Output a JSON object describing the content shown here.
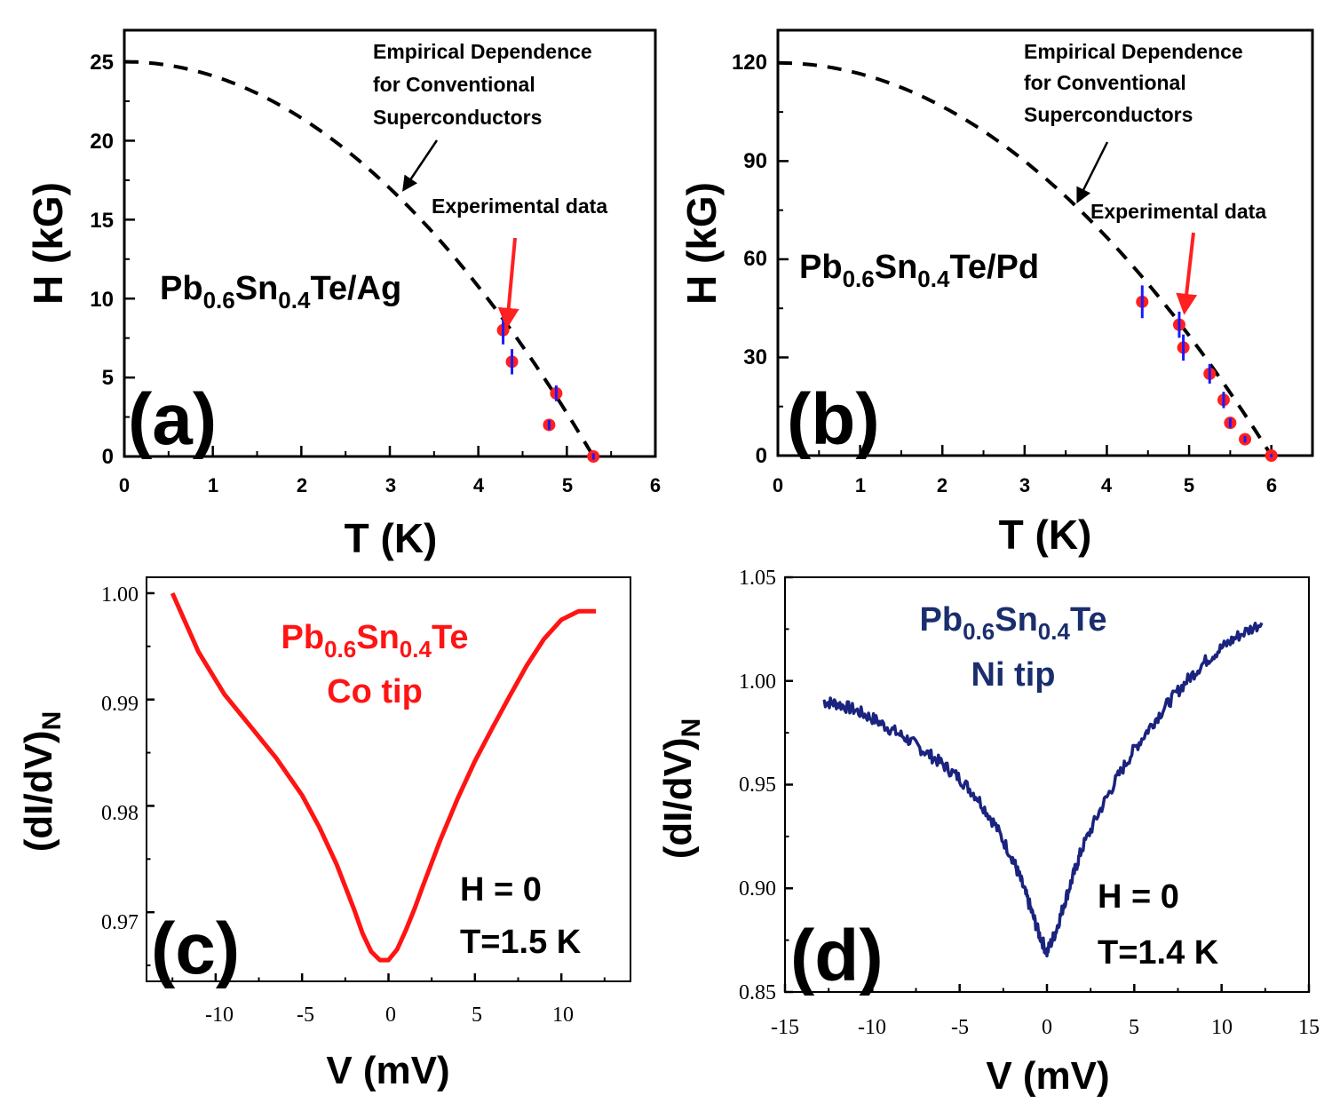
{
  "chart_data": [
    {
      "id": "a",
      "type": "scatter",
      "panel_label": "(a)",
      "xlabel": "T (K)",
      "ylabel": "H (kG)",
      "xlim": [
        0,
        6
      ],
      "ylim": [
        0,
        27
      ],
      "xticks": [
        "0",
        "1",
        "2",
        "3",
        "4",
        "5",
        "6"
      ],
      "yticks": [
        "0",
        "5",
        "10",
        "15",
        "20",
        "25"
      ],
      "sample": {
        "base": "Pb",
        "s1": "0.6",
        "mid": "Sn",
        "s2": "0.4",
        "tail": "Te/Ag"
      },
      "annotation_curve": [
        "Empirical Dependence",
        "for Conventional",
        "Superconductors"
      ],
      "annotation_data": "Experimental data",
      "empirical_curve": {
        "Hc0": 25,
        "Tc": 5.3
      },
      "points": [
        {
          "x": 4.28,
          "y": 8.0,
          "err": 0.9
        },
        {
          "x": 4.38,
          "y": 6.0,
          "err": 0.8
        },
        {
          "x": 4.8,
          "y": 2.0,
          "err": 0.3
        },
        {
          "x": 4.88,
          "y": 4.0,
          "err": 0.5
        },
        {
          "x": 5.3,
          "y": 0.0,
          "err": 0.2
        }
      ],
      "colors": {
        "marker": "#ff2020",
        "errorbar": "#1a1aff",
        "curve": "#000000",
        "arrow": "#ff2020"
      }
    },
    {
      "id": "b",
      "type": "scatter",
      "panel_label": "(b)",
      "xlabel": "T (K)",
      "ylabel": "H (kG)",
      "xlim": [
        0,
        6.5
      ],
      "ylim": [
        0,
        130
      ],
      "xticks": [
        "0",
        "1",
        "2",
        "3",
        "4",
        "5",
        "6"
      ],
      "yticks": [
        "0",
        "30",
        "60",
        "90",
        "120"
      ],
      "sample": {
        "base": "Pb",
        "s1": "0.6",
        "mid": "Sn",
        "s2": "0.4",
        "tail": "Te/Pd"
      },
      "annotation_curve": [
        "Empirical Dependence",
        "for Conventional",
        "Superconductors"
      ],
      "annotation_data": "Experimental data",
      "empirical_curve": {
        "Hc0": 120,
        "Tc": 6.0
      },
      "points": [
        {
          "x": 4.43,
          "y": 47,
          "err": 5
        },
        {
          "x": 4.88,
          "y": 40,
          "err": 4
        },
        {
          "x": 4.93,
          "y": 33,
          "err": 4
        },
        {
          "x": 5.25,
          "y": 25,
          "err": 3
        },
        {
          "x": 5.42,
          "y": 17,
          "err": 2.5
        },
        {
          "x": 5.5,
          "y": 10,
          "err": 1.5
        },
        {
          "x": 5.68,
          "y": 5,
          "err": 1
        },
        {
          "x": 6.0,
          "y": 0,
          "err": 0.5
        }
      ],
      "colors": {
        "marker": "#ff2020",
        "errorbar": "#1a1aff",
        "curve": "#000000",
        "arrow": "#ff2020"
      }
    },
    {
      "id": "c",
      "type": "line",
      "panel_label": "(c)",
      "xlabel": "V (mV)",
      "ylabel": "(dI/dV)",
      "ylabel_sub": "N",
      "xlim": [
        -14,
        14
      ],
      "ylim": [
        0.9635,
        1.0015
      ],
      "xticks": [
        "-10",
        "-5",
        "0",
        "5",
        "10"
      ],
      "yticks": [
        "0.97",
        "0.98",
        "0.99",
        "1.00"
      ],
      "sample": {
        "base": "Pb",
        "s1": "0.6",
        "mid": "Sn",
        "s2": "0.4",
        "tail": "Te"
      },
      "tip": "Co tip",
      "field": "H = 0",
      "temperature": "T=1.5 K",
      "series": [
        {
          "name": "Co tip",
          "x": [
            -12.5,
            -11,
            -9.5,
            -8,
            -6.5,
            -5,
            -4,
            -3,
            -2,
            -1.5,
            -1,
            -0.5,
            0,
            0.5,
            1,
            1.5,
            2,
            3,
            4,
            5,
            6,
            7,
            8,
            9,
            10,
            11,
            12
          ],
          "values": [
            1.0,
            0.9945,
            0.9905,
            0.9875,
            0.9845,
            0.981,
            0.978,
            0.9745,
            0.9703,
            0.968,
            0.9663,
            0.9655,
            0.9655,
            0.9665,
            0.9683,
            0.9703,
            0.9725,
            0.9768,
            0.9807,
            0.9842,
            0.9873,
            0.9903,
            0.9932,
            0.9957,
            0.9975,
            0.9983,
            0.9983
          ]
        }
      ],
      "colors": {
        "line": "#ff1414",
        "label": "#ff1414"
      }
    },
    {
      "id": "d",
      "type": "line",
      "panel_label": "(d)",
      "xlabel": "V (mV)",
      "ylabel": "(dI/dV)",
      "ylabel_sub": "N",
      "xlim": [
        -15,
        15
      ],
      "ylim": [
        0.85,
        1.05
      ],
      "xticks": [
        "-15",
        "-10",
        "-5",
        "0",
        "5",
        "10",
        "15"
      ],
      "yticks": [
        "0.85",
        "0.90",
        "0.95",
        "1.00",
        "1.05"
      ],
      "sample": {
        "base": "Pb",
        "s1": "0.6",
        "mid": "Sn",
        "s2": "0.4",
        "tail": "Te"
      },
      "tip": "Ni tip",
      "field": "H = 0",
      "temperature": "T=1.4 K",
      "series": [
        {
          "name": "Ni tip",
          "x": [
            -12.8,
            -12,
            -11,
            -10,
            -9,
            -8,
            -7,
            -6,
            -5,
            -4,
            -3,
            -2,
            -1.5,
            -1,
            -0.5,
            0,
            0.5,
            1,
            1.5,
            2,
            3,
            4,
            5,
            6,
            7,
            8,
            9,
            10,
            11,
            12.3
          ],
          "values": [
            0.99,
            0.989,
            0.986,
            0.982,
            0.977,
            0.972,
            0.966,
            0.96,
            0.953,
            0.944,
            0.931,
            0.915,
            0.904,
            0.892,
            0.879,
            0.869,
            0.879,
            0.893,
            0.906,
            0.919,
            0.937,
            0.953,
            0.967,
            0.979,
            0.99,
            1.0,
            1.009,
            1.016,
            1.022,
            1.028
          ]
        }
      ],
      "colors": {
        "line": "#1a237e",
        "label": "#1a2e6e"
      }
    }
  ]
}
